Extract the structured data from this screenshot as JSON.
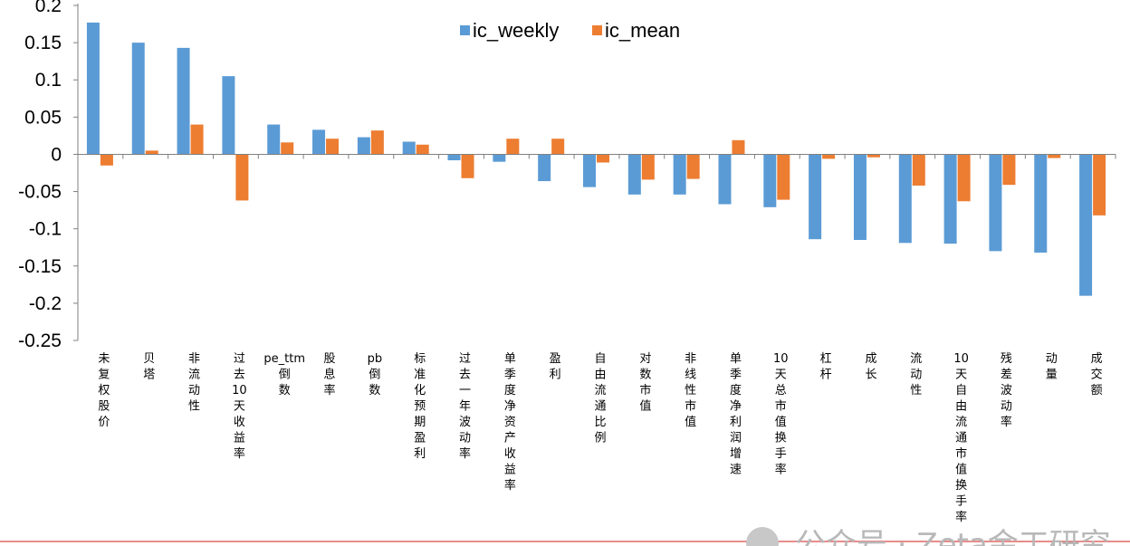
{
  "chart_data": {
    "type": "bar",
    "title": "",
    "xlabel": "",
    "ylabel": "",
    "ylim": [
      -0.25,
      0.2
    ],
    "yticks": [
      0.2,
      0.15,
      0.1,
      0.05,
      0,
      -0.05,
      -0.1,
      -0.15,
      -0.2,
      -0.25
    ],
    "ytick_labels": [
      "0.2",
      "0.15",
      "0.1",
      "0.05",
      "0",
      "-0.05",
      "-0.1",
      "-0.15",
      "-0.2",
      "-0.25"
    ],
    "grid": false,
    "legend_position": "top-center",
    "categories": [
      "未复权股价",
      "贝塔",
      "非流动性",
      "过去10天收益率",
      "pe_ttm倒数",
      "股息率",
      "pb倒数",
      "标准化预期盈利",
      "过去一年波动率",
      "单季度净资产收益率",
      "盈利",
      "自由流通比例",
      "对数市值",
      "非线性市值",
      "单季度净利润增速",
      "10天总市值换手率",
      "杠杆",
      "成长",
      "流动性",
      "10天自由流通市值换手率",
      "残差波动率",
      "动量",
      "成交额"
    ],
    "series": [
      {
        "name": "ic_weekly",
        "color": "#5b9bd5",
        "values": [
          0.177,
          0.15,
          0.143,
          0.105,
          0.04,
          0.033,
          0.023,
          0.017,
          -0.008,
          -0.01,
          -0.036,
          -0.044,
          -0.054,
          -0.054,
          -0.067,
          -0.071,
          -0.114,
          -0.115,
          -0.119,
          -0.12,
          -0.13,
          -0.132,
          -0.19
        ]
      },
      {
        "name": "ic_mean",
        "color": "#ed7d31",
        "values": [
          -0.015,
          0.005,
          0.04,
          -0.062,
          0.016,
          0.021,
          0.032,
          0.013,
          -0.032,
          0.021,
          0.021,
          -0.011,
          -0.034,
          -0.033,
          0.019,
          -0.061,
          -0.006,
          -0.004,
          -0.042,
          -0.063,
          -0.041,
          -0.005,
          -0.082
        ]
      }
    ]
  },
  "watermark": {
    "text": "公众号 · Zeta金工研究"
  }
}
